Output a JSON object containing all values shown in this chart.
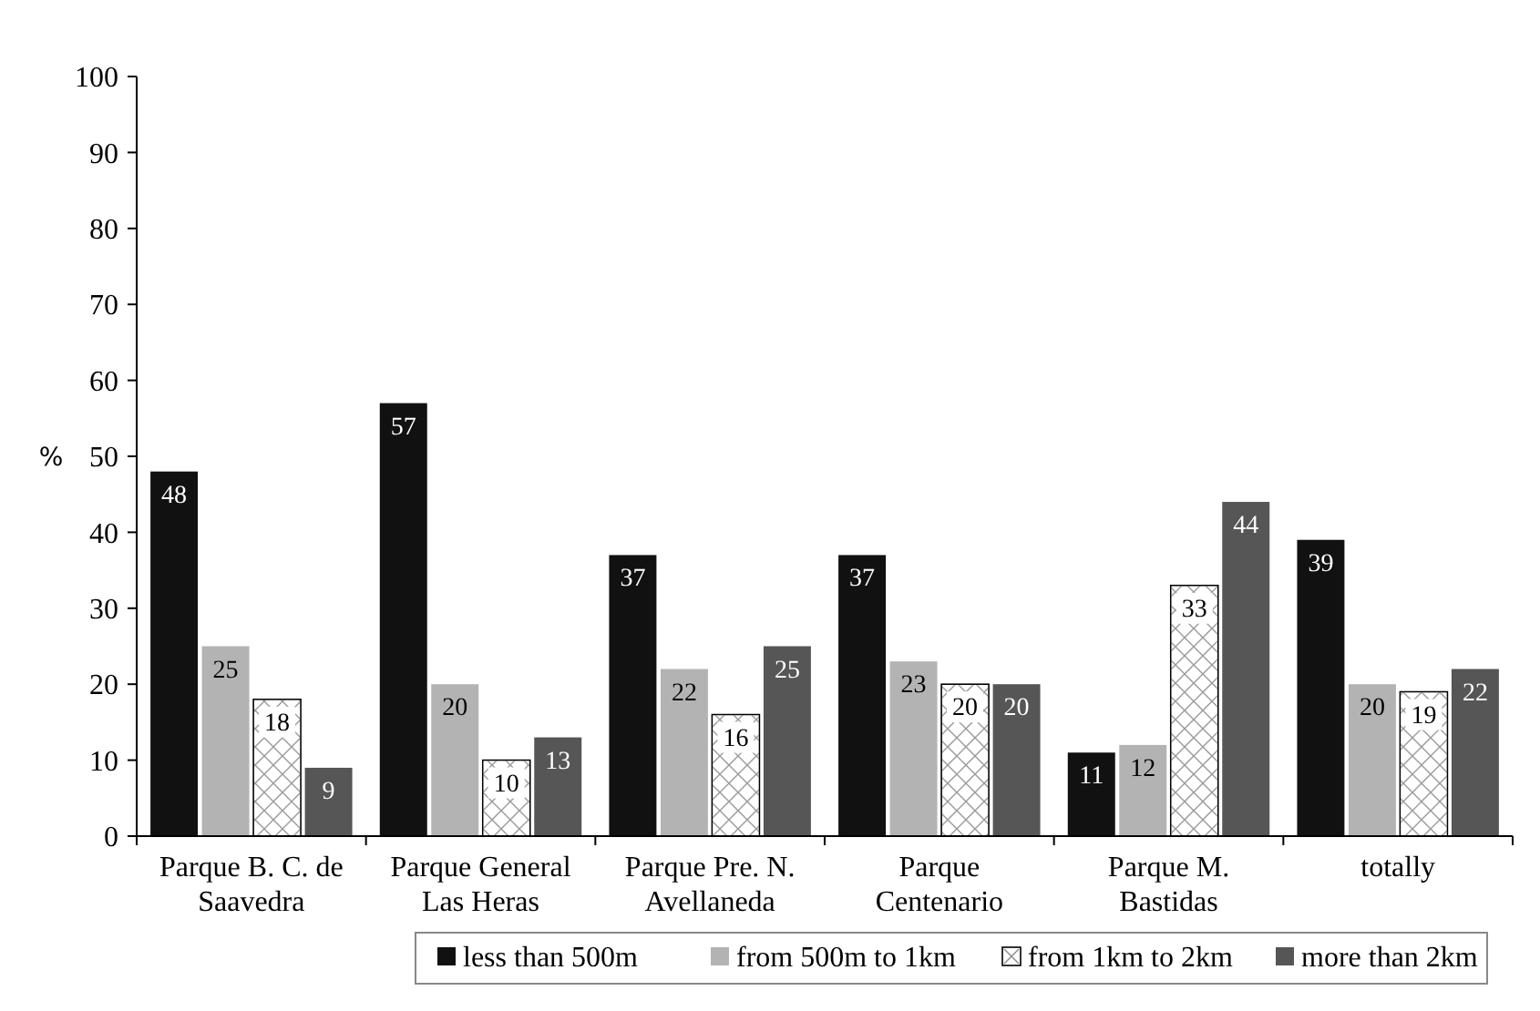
{
  "chart_data": {
    "type": "bar",
    "ylabel": "%",
    "categories": [
      "Parque B. C. de Saavedra",
      "Parque General Las Heras",
      "Parque Pre. N. Avellaneda",
      "Parque Centenario",
      "Parque M. Bastidas",
      "totally"
    ],
    "series": [
      {
        "name": "less than 500m",
        "color": "#111111",
        "values": [
          48,
          57,
          37,
          37,
          11,
          39
        ]
      },
      {
        "name": "from 500m to 1km",
        "color": "#b3b3b3",
        "values": [
          25,
          20,
          22,
          23,
          12,
          20
        ]
      },
      {
        "name": "from 1km to 2km",
        "color": "#ffffff",
        "values": [
          18,
          10,
          16,
          20,
          33,
          19
        ]
      },
      {
        "name": "more than 2km",
        "color": "#565656",
        "values": [
          9,
          13,
          25,
          20,
          44,
          22
        ]
      }
    ],
    "ylim": [
      0,
      100
    ],
    "yticks": [
      0,
      10,
      20,
      30,
      40,
      50,
      60,
      70,
      80,
      90,
      100
    ],
    "data_labels": true,
    "legend": "bottom",
    "grid": false
  }
}
